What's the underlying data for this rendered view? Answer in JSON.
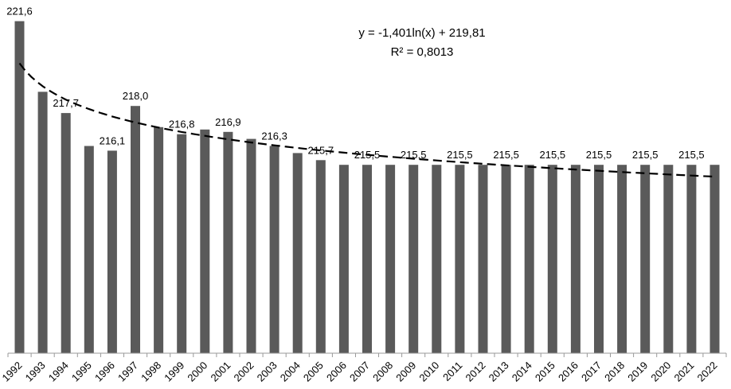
{
  "chart_data": {
    "type": "bar",
    "title": "",
    "xlabel": "",
    "ylabel": "",
    "categories": [
      "1992",
      "1993",
      "1994",
      "1995",
      "1996",
      "1997",
      "1998",
      "1999",
      "2000",
      "2001",
      "2002",
      "2003",
      "2004",
      "2005",
      "2006",
      "2007",
      "2008",
      "2009",
      "2010",
      "2011",
      "2012",
      "2013",
      "2014",
      "2015",
      "2016",
      "2017",
      "2018",
      "2019",
      "2020",
      "2021",
      "2022"
    ],
    "values": [
      221.6,
      218.6,
      217.7,
      216.3,
      216.1,
      218.0,
      217.1,
      216.8,
      217.0,
      216.9,
      216.6,
      216.3,
      216.0,
      215.7,
      215.5,
      215.5,
      215.5,
      215.5,
      215.5,
      215.5,
      215.5,
      215.5,
      215.5,
      215.5,
      215.5,
      215.5,
      215.5,
      215.5,
      215.5,
      215.5,
      215.5
    ],
    "data_labels": [
      {
        "category": "1992",
        "text": "221,6"
      },
      {
        "category": "1994",
        "text": "217,7"
      },
      {
        "category": "1996",
        "text": "216,1"
      },
      {
        "category": "1997",
        "text": "218,0"
      },
      {
        "category": "1999",
        "text": "216,8"
      },
      {
        "category": "2001",
        "text": "216,9"
      },
      {
        "category": "2003",
        "text": "216,3"
      },
      {
        "category": "2005",
        "text": "215,7"
      },
      {
        "category": "2007",
        "text": "215,5"
      },
      {
        "category": "2009",
        "text": "215,5"
      },
      {
        "category": "2011",
        "text": "215,5"
      },
      {
        "category": "2013",
        "text": "215,5"
      },
      {
        "category": "2015",
        "text": "215,5"
      },
      {
        "category": "2017",
        "text": "215,5"
      },
      {
        "category": "2019",
        "text": "215,5"
      },
      {
        "category": "2021",
        "text": "215,5"
      }
    ],
    "ylim": [
      207.5,
      222.5
    ],
    "grid": false,
    "bar_color": "#5a5a5a",
    "trendline": {
      "type": "logarithmic",
      "style": "dashed",
      "color": "#000000",
      "a": -1.401,
      "b": 219.81,
      "equation_text": "y = -1,401ln(x) + 219,81",
      "r2_text": "R² = 0,8013"
    }
  }
}
